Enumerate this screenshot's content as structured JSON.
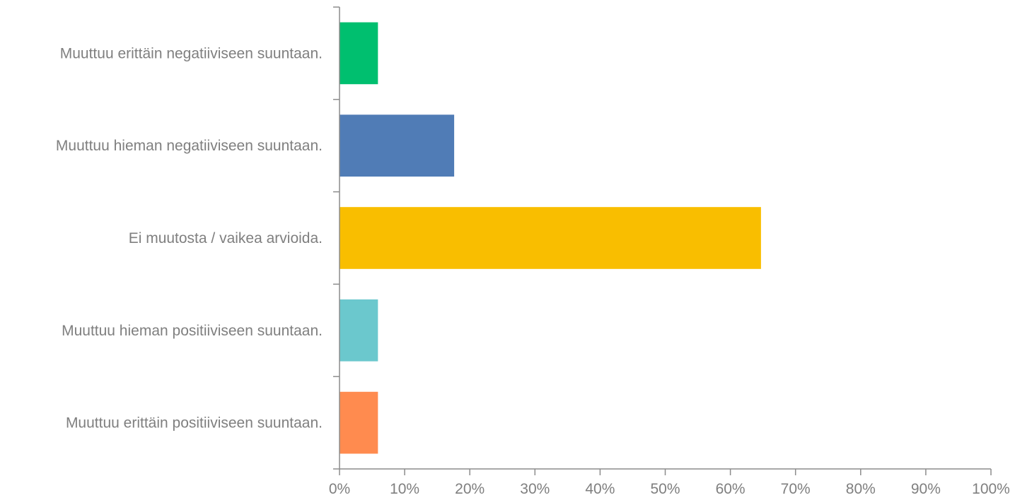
{
  "chart_data": {
    "type": "bar",
    "orientation": "horizontal",
    "categories": [
      "Muuttuu erittäin negatiiviseen suuntaan.",
      "Muuttuu hieman negatiiviseen suuntaan.",
      "Ei muutosta / vaikea arvioida.",
      "Muuttuu hieman positiiviseen suuntaan.",
      "Muuttuu erittäin positiiviseen suuntaan."
    ],
    "values": [
      5.9,
      17.6,
      64.7,
      5.9,
      5.9
    ],
    "colors": [
      "#00bf6f",
      "#507cb6",
      "#f9be00",
      "#6bc8cd",
      "#ff8b4f"
    ],
    "xlim": [
      0,
      100
    ],
    "xticks": [
      "0%",
      "10%",
      "20%",
      "30%",
      "40%",
      "50%",
      "60%",
      "70%",
      "80%",
      "90%",
      "100%"
    ],
    "title": "",
    "xlabel": "",
    "ylabel": "",
    "grid": false,
    "legend": "none"
  }
}
